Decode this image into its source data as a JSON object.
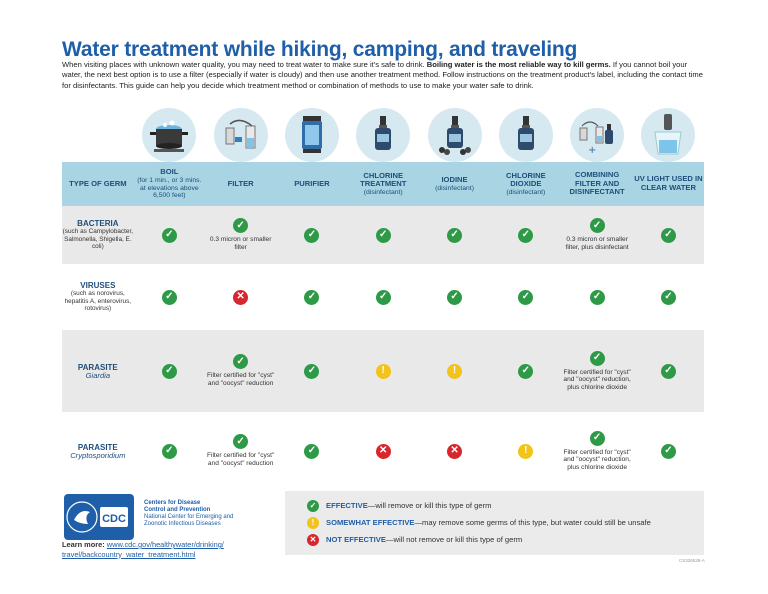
{
  "title": "Water treatment while hiking, camping, and traveling",
  "intro": {
    "part1": "When visiting places with unknown water quality, you may need to treat water to make sure it's safe to drink. ",
    "bold": "Boiling water is the most reliable way to kill germs.",
    "part2": " If you cannot boil your water, the next best option is to use a filter (especially if water is cloudy) and then use another treatment method. Follow instructions on the treatment product's label, including the contact time for disinfectants. This guide can help you decide which treatment method or combination of methods to use to make your water safe to drink."
  },
  "headers": [
    {
      "label": "TYPE OF GERM",
      "sub": ""
    },
    {
      "label": "BOIL",
      "sub": "(for 1 min., or 3 mins. at elevations above 6,500 feet)"
    },
    {
      "label": "FILTER",
      "sub": ""
    },
    {
      "label": "PURIFIER",
      "sub": ""
    },
    {
      "label": "CHLORINE TREATMENT",
      "sub": "(disinfectant)"
    },
    {
      "label": "IODINE",
      "sub": "(disinfectant)"
    },
    {
      "label": "CHLORINE DIOXIDE",
      "sub": "(disinfectant)"
    },
    {
      "label": "COMBINING FILTER AND DISINFECTANT",
      "sub": ""
    },
    {
      "label": "UV LIGHT USED IN CLEAR WATER",
      "sub": ""
    }
  ],
  "icons": [
    "boiling-pot-icon",
    "filter-icon",
    "purifier-icon",
    "chlorine-bottle-icon",
    "iodine-bottle-icon",
    "chlorine-dioxide-bottle-icon",
    "filter-plus-disinfectant-icon",
    "uv-light-icon"
  ],
  "rows": [
    {
      "name": "BACTERIA",
      "sub": "(such as Campylobacter, Salmonella, Shigella, E. coli)",
      "italic": "",
      "cells": [
        {
          "status": "effective",
          "note": ""
        },
        {
          "status": "effective",
          "note": "0.3 micron or smaller filter"
        },
        {
          "status": "effective",
          "note": ""
        },
        {
          "status": "effective",
          "note": ""
        },
        {
          "status": "effective",
          "note": ""
        },
        {
          "status": "effective",
          "note": ""
        },
        {
          "status": "effective",
          "note": "0.3 micron or smaller filter, plus disinfectant"
        },
        {
          "status": "effective",
          "note": ""
        }
      ]
    },
    {
      "name": "VIRUSES",
      "sub": "(such as norovirus, hepatitis A, enterovirus, rotovirus)",
      "italic": "",
      "cells": [
        {
          "status": "effective",
          "note": ""
        },
        {
          "status": "not",
          "note": ""
        },
        {
          "status": "effective",
          "note": ""
        },
        {
          "status": "effective",
          "note": ""
        },
        {
          "status": "effective",
          "note": ""
        },
        {
          "status": "effective",
          "note": ""
        },
        {
          "status": "effective",
          "note": ""
        },
        {
          "status": "effective",
          "note": ""
        }
      ]
    },
    {
      "name": "PARASITE",
      "sub": "",
      "italic": "Giardia",
      "cells": [
        {
          "status": "effective",
          "note": ""
        },
        {
          "status": "effective",
          "note": "Filter certified for \"cyst\" and \"oocyst\" reduction"
        },
        {
          "status": "effective",
          "note": ""
        },
        {
          "status": "somewhat",
          "note": ""
        },
        {
          "status": "somewhat",
          "note": ""
        },
        {
          "status": "effective",
          "note": ""
        },
        {
          "status": "effective",
          "note": "Filter certified for \"cyst\" and \"oocyst\" reduction, plus chlorine dioxide"
        },
        {
          "status": "effective",
          "note": ""
        }
      ]
    },
    {
      "name": "PARASITE",
      "sub": "",
      "italic": "Cryptosporidium",
      "cells": [
        {
          "status": "effective",
          "note": ""
        },
        {
          "status": "effective",
          "note": "Filter certified for \"cyst\" and \"oocyst\" reduction"
        },
        {
          "status": "effective",
          "note": ""
        },
        {
          "status": "not",
          "note": ""
        },
        {
          "status": "not",
          "note": ""
        },
        {
          "status": "somewhat",
          "note": ""
        },
        {
          "status": "effective",
          "note": "Filter certified for \"cyst\" and \"oocyst\" reduction, plus chlorine dioxide"
        },
        {
          "status": "effective",
          "note": ""
        }
      ]
    }
  ],
  "legend": [
    {
      "status": "effective",
      "label": "EFFECTIVE",
      "text": "—will remove or kill this type of germ"
    },
    {
      "status": "somewhat",
      "label": "SOMEWHAT EFFECTIVE",
      "text": "—may remove some germs of this type, but water could still be unsafe"
    },
    {
      "status": "not",
      "label": "NOT EFFECTIVE",
      "text": "—will not remove or kill this type of germ"
    }
  ],
  "footer": {
    "logo_text": "CDC",
    "org_line1": "Centers for Disease",
    "org_line2": "Control and Prevention",
    "org_line3": "National Center for Emerging and",
    "org_line4": "Zoonotic Infectious Diseases",
    "learn_label": "Learn more: ",
    "url_line1": "www.cdc.gov/healthywater/drinking/",
    "url_line2": "travel/backcountry_water_treatment.html",
    "code": "CS326538-A"
  },
  "colors": {
    "effective": "#2e9a48",
    "somewhat": "#f2c318",
    "not": "#d8262f",
    "header_bg": "#a8d4e3",
    "title": "#1f5ea8"
  }
}
